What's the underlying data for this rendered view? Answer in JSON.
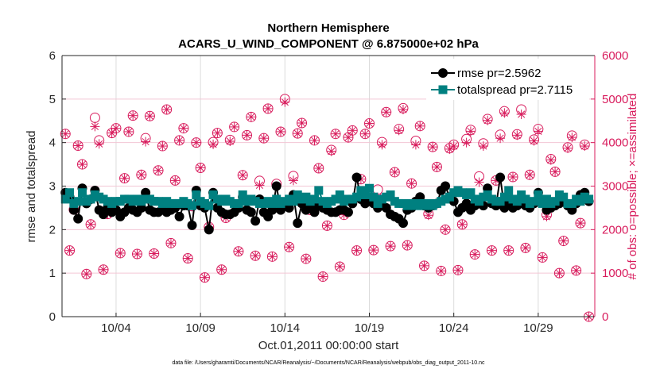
{
  "chart_data": {
    "type": "line",
    "title": [
      "Northern Hemisphere",
      "ACARS_U_WIND_COMPONENT @ 6.875000e+02 hPa"
    ],
    "xlabel": "Oct.01,2011 00:00:00 start",
    "ylabel": "rmse and totalspread",
    "ylabel_right": "# of obs: o=possible; ×=assimilated",
    "footer": "data file: /Users/gharamti/Documents/NCAR/Reanalysis/~/Documents/NCAR/Reanalysis/webpub/obs_diag_output_2011-10.nc",
    "x_units": "days since Oct.01,2011 00:00:00",
    "xlim": [
      -0.2,
      31.35
    ],
    "x_ticks": [
      3,
      8,
      13,
      18,
      23,
      28
    ],
    "x_tick_labels": [
      "10/04",
      "10/09",
      "10/14",
      "10/19",
      "10/24",
      "10/29"
    ],
    "ylim": [
      0,
      6
    ],
    "y_ticks": [
      0,
      1,
      2,
      3,
      4,
      5,
      6
    ],
    "y_tick_labels": [
      "0",
      "1",
      "2",
      "3",
      "4",
      "5",
      "6"
    ],
    "ylim_right": [
      0,
      6000
    ],
    "y_ticks_right": [
      0,
      1000,
      2000,
      3000,
      4000,
      5000,
      6000
    ],
    "y_tick_labels_right": [
      "0",
      "1000",
      "2000",
      "3000",
      "4000",
      "5000",
      "6000"
    ],
    "grid": true,
    "legend_placement": "top-right",
    "x_step_days": 0.25,
    "series": [
      {
        "name": "rmse pr=2.5962",
        "color": "#000000",
        "marker": "circle",
        "values": [
          2.85,
          2.75,
          2.45,
          2.25,
          2.95,
          2.6,
          2.7,
          2.9,
          2.45,
          2.35,
          2.5,
          2.4,
          2.45,
          2.3,
          2.4,
          2.5,
          2.45,
          2.4,
          2.5,
          2.85,
          2.45,
          2.4,
          2.4,
          2.45,
          2.4,
          2.45,
          2.5,
          2.3,
          2.55,
          2.55,
          2.1,
          2.9,
          2.55,
          2.5,
          2.0,
          2.85,
          2.5,
          2.4,
          2.35,
          2.35,
          2.4,
          2.5,
          2.75,
          2.45,
          2.4,
          2.2,
          2.7,
          2.4,
          2.3,
          2.45,
          3.0,
          2.45,
          2.6,
          2.5,
          2.8,
          2.15,
          2.6,
          2.45,
          2.5,
          2.4,
          2.55,
          2.5,
          2.45,
          2.4,
          2.4,
          2.45,
          2.45,
          2.4,
          2.6,
          3.2,
          2.7,
          2.6,
          2.65,
          2.6,
          2.5,
          2.55,
          2.5,
          2.35,
          2.3,
          2.25,
          2.15,
          2.45,
          2.5,
          2.65,
          2.75,
          2.55,
          2.5,
          2.55,
          2.6,
          2.9,
          3.0,
          2.75,
          2.65,
          2.4,
          2.5,
          2.6,
          2.45,
          2.55,
          2.6,
          2.55,
          2.95,
          2.6,
          2.55,
          3.2,
          2.5,
          2.6,
          2.5,
          2.55,
          2.7,
          2.55,
          2.5,
          2.6,
          2.85,
          2.65,
          2.45,
          2.5,
          2.55,
          2.6,
          2.65,
          2.55,
          2.45,
          2.6,
          2.8,
          2.85,
          2.65
        ]
      },
      {
        "name": "totalspread pr=2.7115",
        "color": "#008080",
        "marker": "square",
        "values": [
          2.7,
          2.85,
          2.6,
          2.65,
          2.85,
          2.65,
          2.7,
          2.8,
          2.75,
          2.7,
          2.65,
          2.6,
          2.65,
          2.65,
          2.7,
          2.7,
          2.65,
          2.7,
          2.65,
          2.7,
          2.7,
          2.65,
          2.65,
          2.6,
          2.65,
          2.6,
          2.6,
          2.6,
          2.65,
          2.6,
          2.55,
          2.8,
          2.65,
          2.6,
          2.55,
          2.8,
          2.7,
          2.65,
          2.7,
          2.65,
          2.6,
          2.6,
          2.8,
          2.65,
          2.7,
          2.65,
          2.6,
          2.6,
          2.65,
          2.6,
          2.7,
          2.6,
          2.65,
          2.7,
          2.65,
          2.8,
          2.7,
          2.75,
          2.65,
          2.7,
          2.9,
          2.65,
          2.6,
          2.65,
          2.7,
          2.8,
          2.65,
          2.7,
          2.7,
          2.75,
          2.9,
          2.8,
          2.95,
          2.75,
          2.6,
          2.7,
          2.75,
          2.8,
          2.65,
          2.6,
          2.6,
          2.55,
          2.6,
          2.55,
          2.6,
          2.55,
          2.6,
          2.55,
          2.6,
          2.65,
          2.7,
          2.75,
          2.85,
          2.9,
          2.85,
          2.8,
          2.85,
          2.7,
          2.65,
          2.75,
          2.8,
          2.7,
          2.65,
          2.65,
          2.75,
          2.9,
          2.7,
          2.65,
          2.8,
          2.7,
          2.6,
          2.65,
          2.8,
          2.6,
          2.7,
          2.6,
          2.65,
          2.8,
          2.75,
          2.6,
          2.6,
          2.7,
          2.65,
          2.75,
          2.7
        ]
      },
      {
        "name": "possible",
        "color": "#d81b5c",
        "marker": "open-circle",
        "axis": "right",
        "values": [
          4200,
          1520,
          2460,
          3930,
          3500,
          980,
          2120,
          4570,
          4050,
          1080,
          2360,
          4220,
          4330,
          1460,
          3180,
          4250,
          4620,
          1440,
          3260,
          4100,
          4610,
          1450,
          3360,
          3920,
          4760,
          1690,
          3130,
          4050,
          4330,
          1340,
          2540,
          4000,
          3420,
          900,
          2060,
          4010,
          4220,
          1080,
          2270,
          4060,
          4360,
          1500,
          3250,
          4170,
          4590,
          1400,
          3120,
          4100,
          4780,
          1380,
          3050,
          4250,
          5000,
          1600,
          3230,
          4210,
          4450,
          1330,
          2450,
          4050,
          3410,
          920,
          2090,
          3830,
          4200,
          1150,
          2340,
          4120,
          4280,
          1520,
          3160,
          4200,
          4440,
          1530,
          2920,
          4010,
          4700,
          1620,
          3320,
          4310,
          4790,
          1640,
          3060,
          4040,
          4380,
          1170,
          2360,
          3900,
          3440,
          1050,
          2000,
          3870,
          3950,
          1070,
          2120,
          4080,
          4290,
          1430,
          3220,
          3980,
          4540,
          1520,
          3130,
          4180,
          4720,
          1520,
          3210,
          4190,
          4760,
          1580,
          3260,
          4070,
          4310,
          1360,
          2340,
          3620,
          3330,
          1000,
          1740,
          3890,
          4160,
          1060,
          2150,
          3950,
          0
        ]
      },
      {
        "name": "assimilated",
        "color": "#d81b5c",
        "marker": "asterisk",
        "axis": "right",
        "values": [
          4200,
          1520,
          2460,
          3930,
          3500,
          980,
          2120,
          4370,
          3970,
          1080,
          2360,
          4220,
          4330,
          1460,
          3180,
          4250,
          4620,
          1440,
          3260,
          4020,
          4610,
          1450,
          3360,
          3920,
          4760,
          1690,
          3130,
          4050,
          4330,
          1340,
          2540,
          4000,
          3420,
          900,
          2060,
          3960,
          4220,
          1080,
          2270,
          4030,
          4360,
          1500,
          3250,
          4170,
          4590,
          1400,
          3020,
          4100,
          4780,
          1380,
          3000,
          4250,
          4930,
          1600,
          3130,
          4210,
          4450,
          1330,
          2450,
          4050,
          3410,
          920,
          2090,
          3800,
          4200,
          1150,
          2340,
          4120,
          4280,
          1520,
          3160,
          4200,
          4440,
          1530,
          2740,
          3950,
          4700,
          1620,
          3320,
          4280,
          4760,
          1640,
          3060,
          3950,
          4380,
          1170,
          2330,
          3900,
          3440,
          1050,
          2000,
          3850,
          3920,
          1070,
          2120,
          4000,
          4260,
          1430,
          3090,
          3920,
          4510,
          1520,
          3130,
          4100,
          4680,
          1520,
          3210,
          4170,
          4650,
          1580,
          3260,
          4040,
          4260,
          1360,
          2300,
          3600,
          3330,
          1000,
          1740,
          3870,
          4120,
          1060,
          2150,
          3920,
          0
        ]
      }
    ]
  }
}
